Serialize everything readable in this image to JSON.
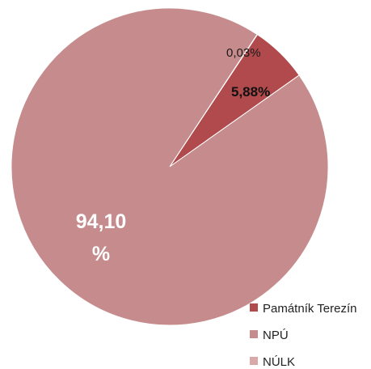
{
  "chart_data": {
    "type": "pie",
    "title": "",
    "legend_position": "bottom-right",
    "slices": [
      {
        "name": "Památník Terezín",
        "value": 5.88,
        "label": "5,88%",
        "color": "#b04a4c"
      },
      {
        "name": "NPÚ",
        "value": 94.1,
        "label_line1": "94,10",
        "label_line2": "%",
        "color": "#c68b8c"
      },
      {
        "name": "NÚLK",
        "value": 0.03,
        "label": "0,03%",
        "color": "#d9a9aa"
      }
    ]
  }
}
